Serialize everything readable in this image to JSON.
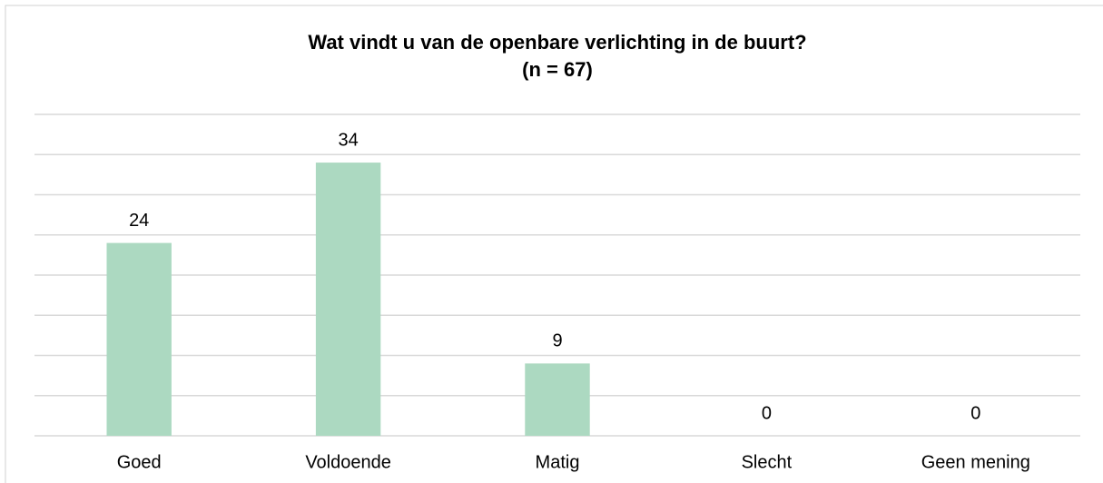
{
  "chart_data": {
    "type": "bar",
    "title": "Wat vindt u van de openbare verlichting in de buurt?",
    "subtitle": "(n = 67)",
    "categories": [
      "Goed",
      "Voldoende",
      "Matig",
      "Slecht",
      "Geen mening"
    ],
    "values": [
      24,
      34,
      9,
      0,
      0
    ],
    "color": "#acd9c1",
    "ylim": [
      0,
      40
    ],
    "yticks": [
      0,
      5,
      10,
      15,
      20,
      25,
      30,
      35,
      40
    ],
    "grid": true
  }
}
